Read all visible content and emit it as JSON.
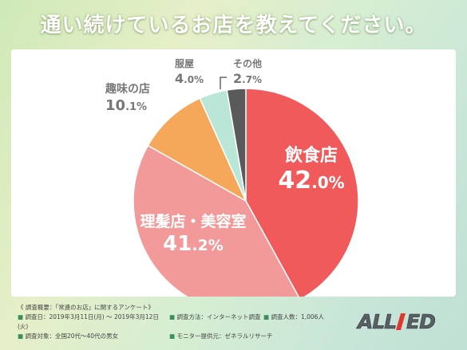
{
  "title": "通い続けているお店を教えてください。",
  "chart_data": {
    "type": "pie",
    "slices": [
      {
        "label": "飲食店",
        "value": 42.0,
        "int": "42",
        "dec": ".0",
        "pct": "%",
        "color": "#f15a5a"
      },
      {
        "label": "理髪店・美容室",
        "value": 41.2,
        "int": "41",
        "dec": ".2",
        "pct": "%",
        "color": "#f29a9a"
      },
      {
        "label": "趣味の店",
        "value": 10.1,
        "int": "10",
        "dec": ".1",
        "pct": "%",
        "color": "#f5a85a"
      },
      {
        "label": "服屋",
        "value": 4.0,
        "int": "4",
        "dec": ".0",
        "pct": "%",
        "color": "#b9e6d6"
      },
      {
        "label": "その他",
        "value": 2.7,
        "int": "2",
        "dec": ".7",
        "pct": "%",
        "color": "#5a5a5a"
      }
    ]
  },
  "footer": {
    "heading": "《 調査概要：「常連のお店」に関するアンケート》",
    "period": "調査日：2019年3月11日(月) 〜 2019年3月12日(火)",
    "method": "調査方法：インターネット調査",
    "count": "調査人数：1,006人",
    "target": "調査対象：全国20代〜40代の男女",
    "provider": "モニター提供元：ゼネラルリサーチ"
  },
  "logo": {
    "text": "ALLIED",
    "accent_color": "#e3342f"
  }
}
